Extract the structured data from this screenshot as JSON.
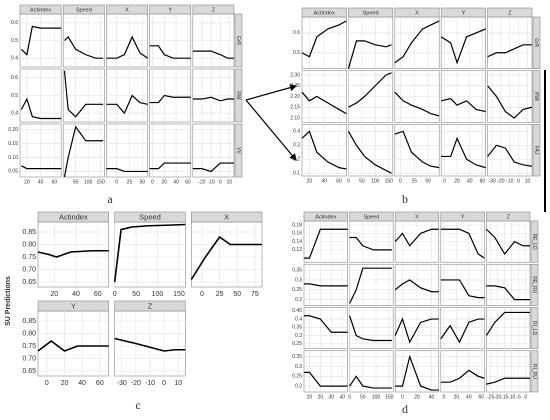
{
  "chart_data": [
    {
      "type": "line",
      "label": "a",
      "color": "#000000",
      "grid": true,
      "columns": [
        {
          "name": "Actindex",
          "xlim": [
            10,
            70
          ],
          "xticks": [
            20,
            40,
            60
          ],
          "x": [
            12,
            20,
            28,
            40,
            55,
            70
          ]
        },
        {
          "name": "Speed",
          "xlim": [
            0,
            165
          ],
          "xticks": [
            50,
            100,
            150
          ],
          "x": [
            5,
            20,
            50,
            90,
            130,
            160
          ]
        },
        {
          "name": "X",
          "xlim": [
            -20,
            60
          ],
          "xticks": [
            0,
            25,
            50
          ],
          "x": [
            -20,
            0,
            15,
            30,
            45,
            60
          ]
        },
        {
          "name": "Y",
          "xlim": [
            -5,
            65
          ],
          "xticks": [
            0,
            20,
            40,
            60
          ],
          "x": [
            -5,
            10,
            20,
            35,
            50,
            65
          ]
        },
        {
          "name": "Z",
          "xlim": [
            -30,
            15
          ],
          "xticks": [
            -20,
            -10,
            0,
            10
          ],
          "x": [
            -30,
            -20,
            -10,
            0,
            8,
            15
          ]
        }
      ],
      "rows": [
        {
          "name": "GrR",
          "ylim": [
            0.35,
            0.65
          ],
          "yticks": [
            0.4,
            0.5,
            0.6
          ],
          "values": [
            [
              0.45,
              0.42,
              0.58,
              0.57,
              0.57,
              0.57
            ],
            [
              0.5,
              0.52,
              0.45,
              0.42,
              0.4,
              0.4
            ],
            [
              0.4,
              0.4,
              0.42,
              0.52,
              0.43,
              0.4
            ],
            [
              0.47,
              0.47,
              0.42,
              0.4,
              0.4,
              0.4
            ],
            [
              0.44,
              0.44,
              0.44,
              0.42,
              0.4,
              0.4
            ]
          ]
        },
        {
          "name": "RW",
          "ylim": [
            0.35,
            0.65
          ],
          "yticks": [
            0.4,
            0.5,
            0.6
          ],
          "values": [
            [
              0.42,
              0.48,
              0.38,
              0.37,
              0.37,
              0.37
            ],
            [
              0.64,
              0.42,
              0.38,
              0.45,
              0.45,
              0.45
            ],
            [
              0.45,
              0.45,
              0.4,
              0.5,
              0.46,
              0.45
            ],
            [
              0.46,
              0.46,
              0.5,
              0.49,
              0.49,
              0.49
            ],
            [
              0.48,
              0.48,
              0.49,
              0.47,
              0.48,
              0.48
            ]
          ]
        },
        {
          "name": "VV",
          "ylim": [
            0.03,
            0.22
          ],
          "yticks": [
            0.05,
            {
              "value": 0.1,
              "label": "0.10"
            },
            0.15,
            {
              "value": 0.2,
              "label": "0.20"
            }
          ],
          "values": [
            [
              0.07,
              0.06,
              0.06,
              0.06,
              0.06,
              0.06
            ],
            [
              0.03,
              0.1,
              0.21,
              0.16,
              0.16,
              0.16
            ],
            [
              0.06,
              0.06,
              0.05,
              0.05,
              0.05,
              0.05
            ],
            [
              0.06,
              0.06,
              0.08,
              0.08,
              0.08,
              0.08
            ],
            [
              0.06,
              0.06,
              0.05,
              0.08,
              0.08,
              0.08
            ]
          ]
        }
      ]
    },
    {
      "type": "line",
      "label": "b",
      "color": "#000000",
      "grid": true,
      "columns": [
        {
          "name": "Actindex",
          "xlim": [
            10,
            70
          ],
          "xticks": [
            20,
            40,
            60
          ],
          "x": [
            10,
            20,
            30,
            45,
            60,
            70
          ]
        },
        {
          "name": "Speed",
          "xlim": [
            0,
            165
          ],
          "xticks": [
            0,
            50,
            100,
            150
          ],
          "x": [
            0,
            30,
            60,
            100,
            140,
            160
          ]
        },
        {
          "name": "X",
          "xlim": [
            -10,
            70
          ],
          "xticks": [
            0,
            25,
            50
          ],
          "x": [
            -10,
            5,
            20,
            40,
            55,
            70
          ]
        },
        {
          "name": "Y",
          "xlim": [
            -5,
            65
          ],
          "xticks": [
            0,
            20,
            40,
            60
          ],
          "x": [
            -5,
            10,
            20,
            35,
            50,
            65
          ]
        },
        {
          "name": "Z",
          "xlim": [
            -35,
            15
          ],
          "xticks": [
            -30,
            -20,
            -10,
            0,
            10
          ],
          "x": [
            -35,
            -25,
            -15,
            -5,
            5,
            15
          ]
        }
      ],
      "rows": [
        {
          "name": "GrR",
          "ylim": [
            0.42,
            0.68
          ],
          "yticks": [
            0.5,
            0.6
          ],
          "values": [
            [
              0.5,
              0.48,
              0.58,
              0.62,
              0.64,
              0.66
            ],
            [
              0.42,
              0.56,
              0.56,
              0.54,
              0.53,
              0.54
            ],
            [
              0.45,
              0.48,
              0.55,
              0.62,
              0.64,
              0.66
            ],
            [
              0.58,
              0.55,
              0.45,
              0.58,
              0.6,
              0.62
            ],
            [
              0.48,
              0.5,
              0.5,
              0.52,
              0.54,
              0.54
            ]
          ]
        },
        {
          "name": "RWi",
          "ylim": [
            2.08,
            2.32
          ],
          "yticks": [
            {
              "value": 2.1,
              "label": "2.10"
            },
            2.15,
            {
              "value": 2.2,
              "label": "2.20"
            },
            2.25,
            {
              "value": 2.3,
              "label": "2.30"
            }
          ],
          "values": [
            [
              2.22,
              2.18,
              2.2,
              2.17,
              2.14,
              2.12
            ],
            [
              2.15,
              2.17,
              2.2,
              2.25,
              2.3,
              2.31
            ],
            [
              2.22,
              2.18,
              2.16,
              2.14,
              2.12,
              2.11
            ],
            [
              2.18,
              2.19,
              2.16,
              2.18,
              2.14,
              2.13
            ],
            [
              2.25,
              2.2,
              2.13,
              2.1,
              2.14,
              2.15
            ]
          ]
        },
        {
          "name": "FAJ",
          "ylim": [
            0.08,
            0.45
          ],
          "yticks": [
            0.1,
            0.2,
            0.3,
            0.4
          ],
          "values": [
            [
              0.35,
              0.4,
              0.25,
              0.18,
              0.14,
              0.13
            ],
            [
              0.4,
              0.3,
              0.22,
              0.16,
              0.12,
              0.1
            ],
            [
              0.38,
              0.4,
              0.25,
              0.18,
              0.15,
              0.14
            ],
            [
              0.22,
              0.22,
              0.35,
              0.2,
              0.16,
              0.14
            ],
            [
              0.22,
              0.3,
              0.28,
              0.18,
              0.16,
              0.15
            ]
          ]
        }
      ]
    },
    {
      "type": "line",
      "label": "c",
      "color": "#000000",
      "grid": true,
      "ylabel": "SU Predictions",
      "columns": [
        {
          "name": "Actindex",
          "xlim": [
            5,
            70
          ],
          "xticks": [
            20,
            40,
            60
          ],
          "x": [
            5,
            15,
            22,
            35,
            55,
            70
          ]
        },
        {
          "name": "Speed",
          "xlim": [
            0,
            165
          ],
          "xticks": [
            0,
            50,
            100,
            150
          ],
          "x": [
            0,
            15,
            40,
            80,
            120,
            165
          ]
        },
        {
          "name": "X",
          "xlim": [
            -15,
            85
          ],
          "xticks": [
            0,
            25,
            50,
            75
          ],
          "x": [
            -15,
            5,
            25,
            40,
            60,
            85
          ]
        },
        {
          "name": "Y",
          "xlim": [
            -10,
            70
          ],
          "xticks": [
            0,
            20,
            40,
            60
          ],
          "x": [
            -10,
            5,
            20,
            35,
            55,
            70
          ]
        },
        {
          "name": "Z",
          "xlim": [
            -35,
            15
          ],
          "xticks": [
            -30,
            -20,
            -10,
            0,
            10
          ],
          "x": [
            -35,
            -20,
            -10,
            0,
            8,
            15
          ]
        }
      ],
      "rows": [
        {
          "ylim": [
            0.63,
            0.89
          ],
          "yticks": [
            0.65,
            {
              "value": 0.7,
              "label": "0.70"
            },
            0.75,
            {
              "value": 0.8,
              "label": "0.80"
            },
            0.85
          ],
          "values": [
            [
              0.77,
              0.76,
              0.75,
              0.77,
              0.775,
              0.775
            ],
            [
              0.65,
              0.86,
              0.87,
              0.875,
              0.877,
              0.88
            ],
            [
              0.66,
              0.75,
              0.83,
              0.8,
              0.8,
              0.8
            ],
            [
              0.73,
              0.77,
              0.73,
              0.75,
              0.75,
              0.75
            ],
            [
              0.78,
              0.76,
              0.745,
              0.73,
              0.735,
              0.735
            ]
          ]
        }
      ]
    },
    {
      "type": "line",
      "label": "d",
      "color": "#000000",
      "grid": true,
      "columns": [
        {
          "name": "Actindex",
          "xlim": [
            5,
            45
          ],
          "xticks": [
            10,
            20,
            30,
            40
          ],
          "x": [
            5,
            10,
            20,
            30,
            38,
            45
          ]
        },
        {
          "name": "Speed",
          "xlim": [
            0,
            165
          ],
          "xticks": [
            0,
            50,
            100,
            150
          ],
          "x": [
            0,
            25,
            50,
            90,
            130,
            160
          ]
        },
        {
          "name": "X",
          "xlim": [
            -10,
            50
          ],
          "xticks": [
            0,
            20,
            40
          ],
          "x": [
            -10,
            0,
            10,
            25,
            40,
            50
          ]
        },
        {
          "name": "Y",
          "xlim": [
            -5,
            65
          ],
          "xticks": [
            0,
            20,
            40,
            60
          ],
          "x": [
            -5,
            10,
            25,
            40,
            55,
            65
          ]
        },
        {
          "name": "Z",
          "xlim": [
            -28,
            3
          ],
          "xticks": [
            -25,
            -20,
            -15,
            -10,
            -5,
            0
          ],
          "x": [
            -28,
            -22,
            -15,
            -8,
            -2,
            3
          ]
        }
      ],
      "rows": [
        {
          "name": "RE_LD",
          "ylim": [
            0.09,
            0.19
          ],
          "yticks": [
            0.12,
            0.14,
            0.16,
            0.18
          ],
          "values": [
            [
              0.1,
              0.1,
              0.17,
              0.17,
              0.17,
              0.17
            ],
            [
              0.15,
              0.15,
              0.13,
              0.12,
              0.12,
              0.12
            ],
            [
              0.14,
              0.16,
              0.13,
              0.16,
              0.17,
              0.17
            ],
            [
              0.17,
              0.17,
              0.17,
              0.16,
              0.11,
              0.1
            ],
            [
              0.17,
              0.15,
              0.11,
              0.14,
              0.13,
              0.13
            ]
          ]
        },
        {
          "name": "RE_RU",
          "ylim": [
            0.17,
            0.38
          ],
          "yticks": [
            0.2,
            0.25,
            0.3,
            0.35
          ],
          "values": [
            [
              0.28,
              0.28,
              0.27,
              0.27,
              0.27,
              0.27
            ],
            [
              0.18,
              0.25,
              0.36,
              0.36,
              0.36,
              0.36
            ],
            [
              0.25,
              0.28,
              0.3,
              0.26,
              0.24,
              0.24
            ],
            [
              0.3,
              0.3,
              0.3,
              0.22,
              0.21,
              0.21
            ],
            [
              0.27,
              0.27,
              0.26,
              0.2,
              0.2,
              0.2
            ]
          ]
        },
        {
          "name": "RI_LD",
          "ylim": [
            0.22,
            0.47
          ],
          "yticks": [
            0.25,
            0.3,
            0.35,
            0.4,
            0.45
          ],
          "values": [
            [
              0.42,
              0.42,
              0.4,
              0.32,
              0.32,
              0.32
            ],
            [
              0.42,
              0.3,
              0.28,
              0.27,
              0.27,
              0.27
            ],
            [
              0.3,
              0.4,
              0.26,
              0.38,
              0.4,
              0.4
            ],
            [
              0.28,
              0.36,
              0.26,
              0.38,
              0.4,
              0.4
            ],
            [
              0.3,
              0.38,
              0.44,
              0.44,
              0.44,
              0.44
            ]
          ]
        },
        {
          "name": "RI_RU",
          "ylim": [
            0.17,
            0.38
          ],
          "yticks": [
            0.2,
            0.25,
            0.3,
            0.35
          ],
          "values": [
            [
              0.27,
              0.27,
              0.2,
              0.2,
              0.2,
              0.2
            ],
            [
              0.2,
              0.25,
              0.2,
              0.19,
              0.19,
              0.19
            ],
            [
              0.2,
              0.2,
              0.35,
              0.2,
              0.18,
              0.18
            ],
            [
              0.22,
              0.22,
              0.24,
              0.28,
              0.25,
              0.24
            ],
            [
              0.21,
              0.22,
              0.24,
              0.24,
              0.24,
              0.24
            ]
          ]
        }
      ]
    }
  ]
}
